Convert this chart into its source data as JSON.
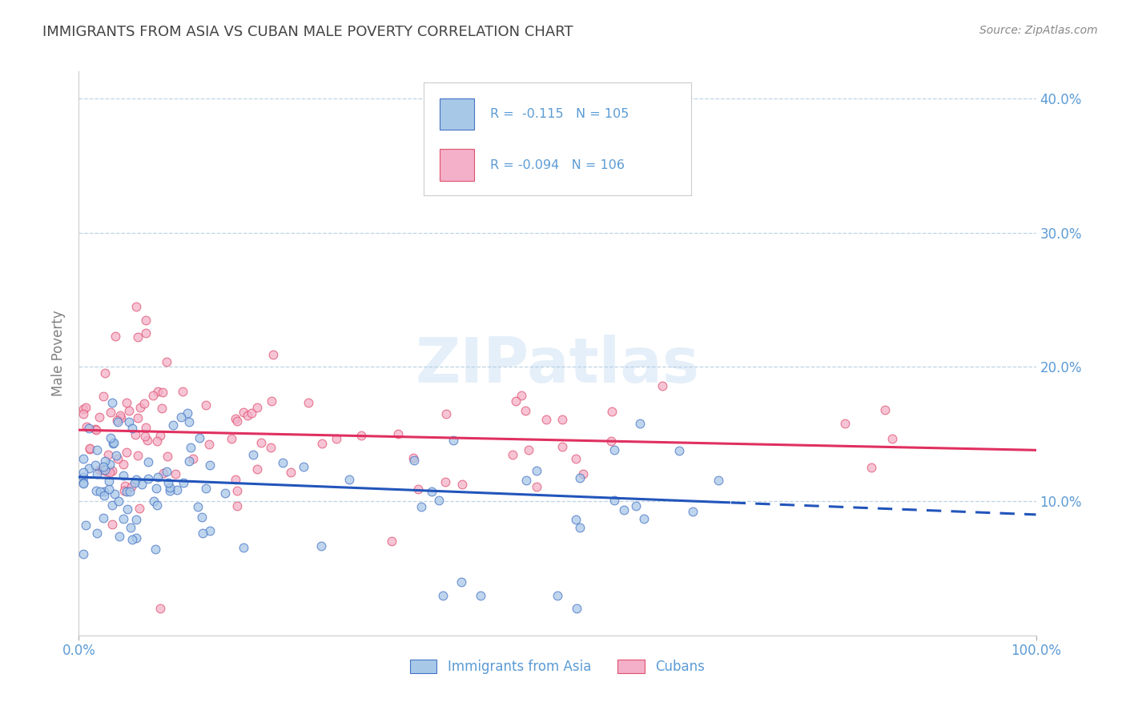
{
  "title": "IMMIGRANTS FROM ASIA VS CUBAN MALE POVERTY CORRELATION CHART",
  "source": "Source: ZipAtlas.com",
  "ylabel": "Male Poverty",
  "legend_labels": [
    "Immigrants from Asia",
    "Cubans"
  ],
  "r_asia": -0.115,
  "n_asia": 105,
  "r_cubans": -0.094,
  "n_cubans": 106,
  "color_asia": "#a8c8e8",
  "color_cubans": "#f4b0c8",
  "color_asia_line": "#4472c4",
  "color_cubans_line": "#e05070",
  "trendline_asia_color": "#2255bb",
  "trendline_cubans_color": "#e03060",
  "background": "#ffffff",
  "title_color": "#444444",
  "axis_label_color": "#808080",
  "tick_color": "#5b9bd5",
  "grid_color": "#b8cfe0",
  "xlim": [
    0,
    1
  ],
  "ylim": [
    0,
    0.42
  ],
  "xtick_positions": [
    0.0,
    1.0
  ],
  "xtick_labels": [
    "0.0%",
    "100.0%"
  ],
  "ytick_positions": [
    0.1,
    0.2,
    0.3,
    0.4
  ],
  "ytick_labels": [
    "10.0%",
    "20.0%",
    "30.0%",
    "40.0%"
  ],
  "trend_asia_intercept": 0.118,
  "trend_asia_slope": -0.028,
  "trend_cubans_intercept": 0.153,
  "trend_cubans_slope": -0.015,
  "trend_dashed_start": 0.68
}
